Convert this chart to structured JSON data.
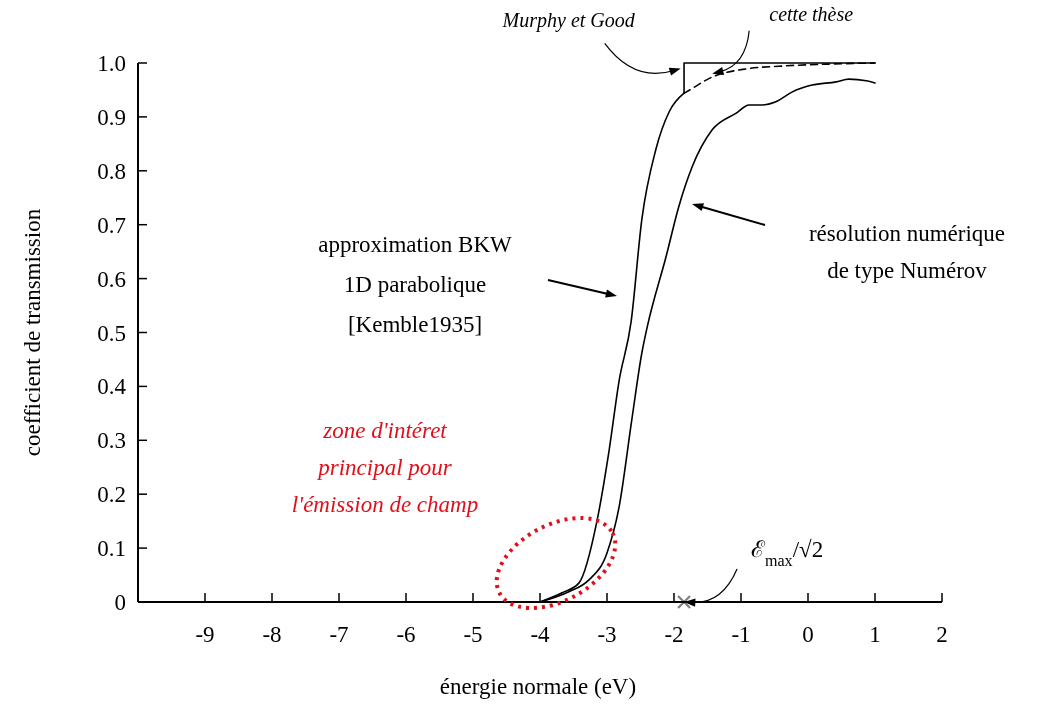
{
  "chart_data": {
    "type": "line",
    "xlabel": "énergie normale (eV)",
    "ylabel": "coefficient de transmission",
    "xlim": [
      -10,
      2
    ],
    "xticks": [
      -9,
      -8,
      -7,
      -6,
      -5,
      -4,
      -3,
      -2,
      -1,
      0,
      1,
      2
    ],
    "ylim": [
      0,
      1
    ],
    "yticks": [
      0,
      0.1,
      0.2,
      0.3,
      0.4,
      0.5,
      0.6,
      0.7,
      0.8,
      0.9,
      {
        "value": 1,
        "label": "1.0"
      }
    ],
    "grid": false,
    "marker": "none",
    "line_style": "solid",
    "series": [
      {
        "color": "#000000",
        "x": [
          -4,
          -3.67,
          -3.42,
          -3.15,
          -2.97,
          -2.82,
          -2.64,
          -2.48,
          -2.27,
          -2.07,
          -1.85
        ],
        "values": [
          0,
          0.017,
          0.035,
          0.15,
          0.28,
          0.41,
          0.52,
          0.71,
          0.84,
          0.91,
          0.944
        ]
      },
      {
        "color": "#000000",
        "x": [
          -1.85,
          -1.85,
          1
        ],
        "values": [
          0.944,
          1,
          1
        ]
      },
      {
        "color": "#000000",
        "line_style": "dashed",
        "x": [
          -1.85,
          -1.82,
          -1.43,
          -0.93,
          -0.43,
          0.31,
          1
        ],
        "values": [
          0.944,
          0.946,
          0.974,
          0.989,
          0.994,
          0.998,
          1
        ]
      },
      {
        "color": "#000000",
        "x": [
          -4,
          -3.57,
          -3.27,
          -3,
          -2.82,
          -2.63,
          -2.48,
          -2.4,
          -2.12,
          -1.93,
          -1.73,
          -1.43,
          -1.07,
          -0.88,
          -0.69,
          -0.48,
          -0.24,
          0.06,
          0.42,
          0.61,
          0.87,
          1
        ],
        "values": [
          0,
          0.019,
          0.041,
          0.091,
          0.176,
          0.338,
          0.462,
          0.51,
          0.64,
          0.733,
          0.807,
          0.876,
          0.907,
          0.922,
          0.922,
          0.928,
          0.946,
          0.959,
          0.965,
          0.97,
          0.967,
          0.963
        ]
      },
      {
        "type": "scatter",
        "marker": "cross",
        "color": "#808080",
        "x": [
          -1.85
        ],
        "values": [
          0
        ]
      }
    ],
    "annotations": [
      "approximation BKW\n1D parabolique\n[Kemble1935]",
      "résolution numérique\nde type Numérov",
      {
        "text": "Murphy et Good",
        "x": -1.9,
        "y": 0.99
      },
      {
        "text": "cette thèse",
        "x": -1.43,
        "y": 0.98
      },
      "zone d'intéret\nprincipal pour\nl'émission de champ",
      {
        "text": "ℰ$_{max}$/√2",
        "x": -1.85,
        "y": 0
      }
    ]
  }
}
